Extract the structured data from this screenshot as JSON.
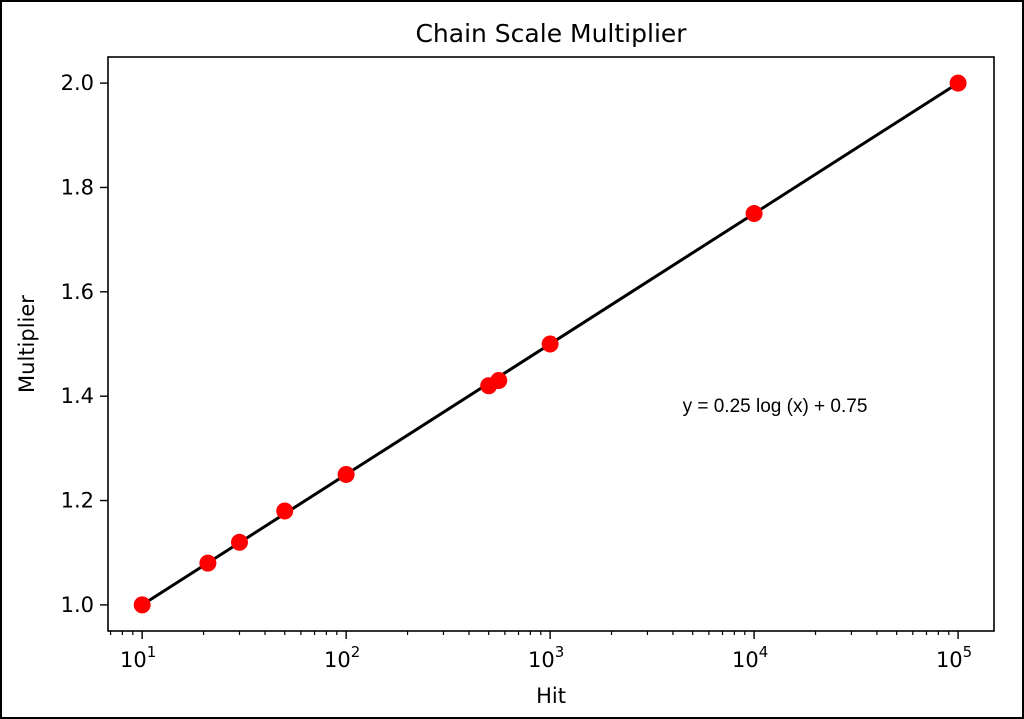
{
  "chart_data": {
    "type": "scatter",
    "title": "Chain Scale Multiplier",
    "xlabel": "Hit",
    "ylabel": "Multiplier",
    "xscale": "log",
    "xlim": [
      6.8,
      150000
    ],
    "ylim": [
      0.95,
      2.05
    ],
    "x_ticks": [
      {
        "value": 10,
        "base": "10",
        "exp": "1"
      },
      {
        "value": 100,
        "base": "10",
        "exp": "2"
      },
      {
        "value": 1000,
        "base": "10",
        "exp": "3"
      },
      {
        "value": 10000,
        "base": "10",
        "exp": "4"
      },
      {
        "value": 100000,
        "base": "10",
        "exp": "5"
      }
    ],
    "y_ticks": [
      "1.0",
      "1.2",
      "1.4",
      "1.6",
      "1.8",
      "2.0"
    ],
    "series": [
      {
        "x": [
          10,
          21,
          30,
          50,
          100,
          500,
          560,
          1000,
          10000,
          100000
        ],
        "y": [
          1.0,
          1.08,
          1.12,
          1.18,
          1.25,
          1.42,
          1.43,
          1.5,
          1.75,
          2.0
        ],
        "color": "#ff0000",
        "marker": "circle"
      }
    ],
    "fit_line": {
      "x": [
        10,
        100000
      ],
      "y": [
        1.0,
        2.0
      ],
      "color": "#000000"
    },
    "annotation": "y = 0.25 log (x) + 0.75",
    "grid": false,
    "legend": "none"
  }
}
